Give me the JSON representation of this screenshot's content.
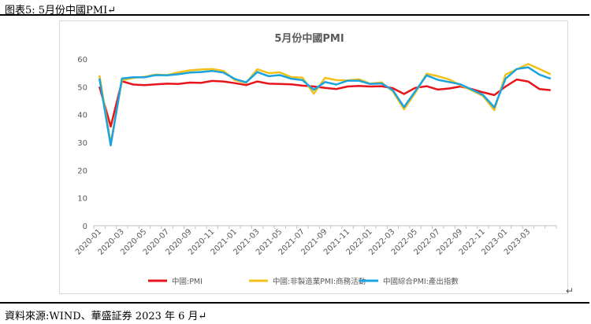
{
  "caption": "图表5:  5月份中國PMI↵",
  "source": "資料來源:WIND、華盛証券 2023 年 6 月↵",
  "return_mark": "↵",
  "chart_data": {
    "type": "line",
    "title": "5月份中國PMI",
    "xlabel": "",
    "ylabel": "",
    "ylim": [
      0,
      60
    ],
    "yticks": [
      0,
      10,
      20,
      30,
      40,
      50,
      60
    ],
    "grid": false,
    "legend_position": "bottom",
    "tick_labels_shown": [
      "2020-01",
      "2020-03",
      "2020-05",
      "2020-07",
      "2020-09",
      "2020-11",
      "2021-01",
      "2021-03",
      "2021-05",
      "2021-07",
      "2021-09",
      "2021-11",
      "2022-01",
      "2022-03",
      "2022-05",
      "2022-07",
      "2022-09",
      "2022-11",
      "2023-01",
      "2023-03"
    ],
    "x": [
      "2020-01",
      "2020-02",
      "2020-03",
      "2020-04",
      "2020-05",
      "2020-06",
      "2020-07",
      "2020-08",
      "2020-09",
      "2020-10",
      "2020-11",
      "2020-12",
      "2021-01",
      "2021-02",
      "2021-03",
      "2021-04",
      "2021-05",
      "2021-06",
      "2021-07",
      "2021-08",
      "2021-09",
      "2021-10",
      "2021-11",
      "2021-12",
      "2022-01",
      "2022-02",
      "2022-03",
      "2022-04",
      "2022-05",
      "2022-06",
      "2022-07",
      "2022-08",
      "2022-09",
      "2022-10",
      "2022-11",
      "2022-12",
      "2023-01",
      "2023-02",
      "2023-03",
      "2023-04",
      "2023-05"
    ],
    "series": [
      {
        "name": "中國:PMI",
        "color": "#e8141b",
        "values": [
          50.0,
          35.7,
          52.0,
          50.8,
          50.6,
          50.9,
          51.1,
          51.0,
          51.5,
          51.4,
          52.1,
          51.9,
          51.3,
          50.6,
          51.9,
          51.1,
          51.0,
          50.9,
          50.4,
          50.1,
          49.6,
          49.2,
          50.1,
          50.3,
          50.1,
          50.2,
          49.5,
          47.4,
          49.6,
          50.2,
          49.0,
          49.4,
          50.1,
          49.2,
          48.0,
          47.0,
          50.1,
          52.6,
          51.9,
          49.2,
          48.8
        ]
      },
      {
        "name": "中國:非製造業PMI:商務活動",
        "color": "#f2c019",
        "values": [
          54.1,
          29.6,
          52.3,
          53.2,
          53.6,
          54.4,
          54.2,
          55.2,
          55.9,
          56.2,
          56.4,
          55.7,
          52.4,
          51.4,
          56.3,
          54.9,
          55.2,
          53.5,
          53.3,
          47.5,
          53.2,
          52.4,
          52.3,
          52.7,
          51.1,
          51.6,
          48.4,
          41.9,
          47.8,
          54.7,
          53.8,
          52.6,
          50.6,
          48.7,
          46.7,
          41.6,
          54.4,
          56.3,
          58.2,
          56.4,
          54.5
        ]
      },
      {
        "name": "中國綜合PMI:產出指數",
        "color": "#1aa3df",
        "values": [
          53.0,
          28.9,
          53.0,
          53.4,
          53.4,
          54.2,
          54.1,
          54.5,
          55.1,
          55.3,
          55.7,
          55.1,
          52.8,
          51.6,
          55.3,
          53.8,
          54.2,
          52.9,
          52.4,
          48.9,
          51.7,
          50.8,
          52.2,
          52.2,
          51.0,
          51.2,
          48.8,
          42.7,
          48.4,
          54.1,
          52.5,
          51.7,
          50.9,
          49.0,
          47.1,
          42.6,
          52.9,
          56.4,
          57.0,
          54.4,
          52.9
        ]
      }
    ]
  }
}
